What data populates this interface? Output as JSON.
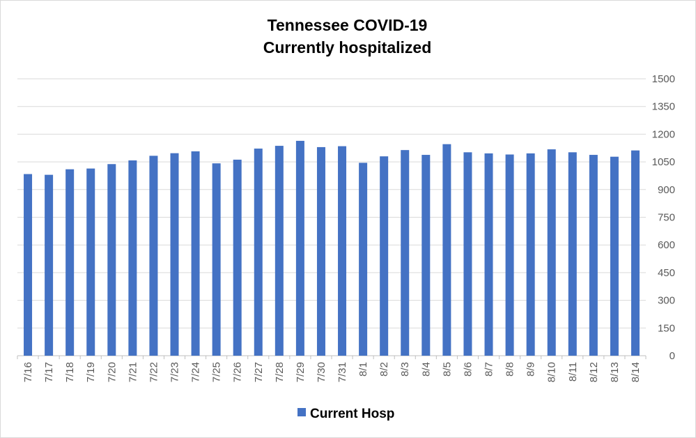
{
  "chart_data": {
    "type": "bar",
    "title": "Tennessee COVID-19",
    "subtitle": "Currently hospitalized",
    "xlabel": "",
    "ylabel": "",
    "ylim": [
      0,
      1500
    ],
    "yticks": [
      0,
      150,
      300,
      450,
      600,
      750,
      900,
      1050,
      1200,
      1350,
      1500
    ],
    "y_axis_side": "right",
    "grid": true,
    "legend_position": "bottom",
    "categories": [
      "7/16",
      "7/17",
      "7/18",
      "7/19",
      "7/20",
      "7/21",
      "7/22",
      "7/23",
      "7/24",
      "7/25",
      "7/26",
      "7/27",
      "7/28",
      "7/29",
      "7/30",
      "7/31",
      "8/1",
      "8/2",
      "8/3",
      "8/4",
      "8/5",
      "8/6",
      "8/7",
      "8/8",
      "8/9",
      "8/10",
      "8/11",
      "8/12",
      "8/13",
      "8/14"
    ],
    "series": [
      {
        "name": "Current Hosp",
        "color": "#4472c4",
        "values": [
          984,
          980,
          1010,
          1014,
          1038,
          1058,
          1083,
          1097,
          1107,
          1042,
          1062,
          1122,
          1137,
          1164,
          1130,
          1135,
          1045,
          1080,
          1114,
          1088,
          1146,
          1102,
          1096,
          1090,
          1096,
          1118,
          1102,
          1088,
          1078,
          1112
        ]
      }
    ]
  }
}
